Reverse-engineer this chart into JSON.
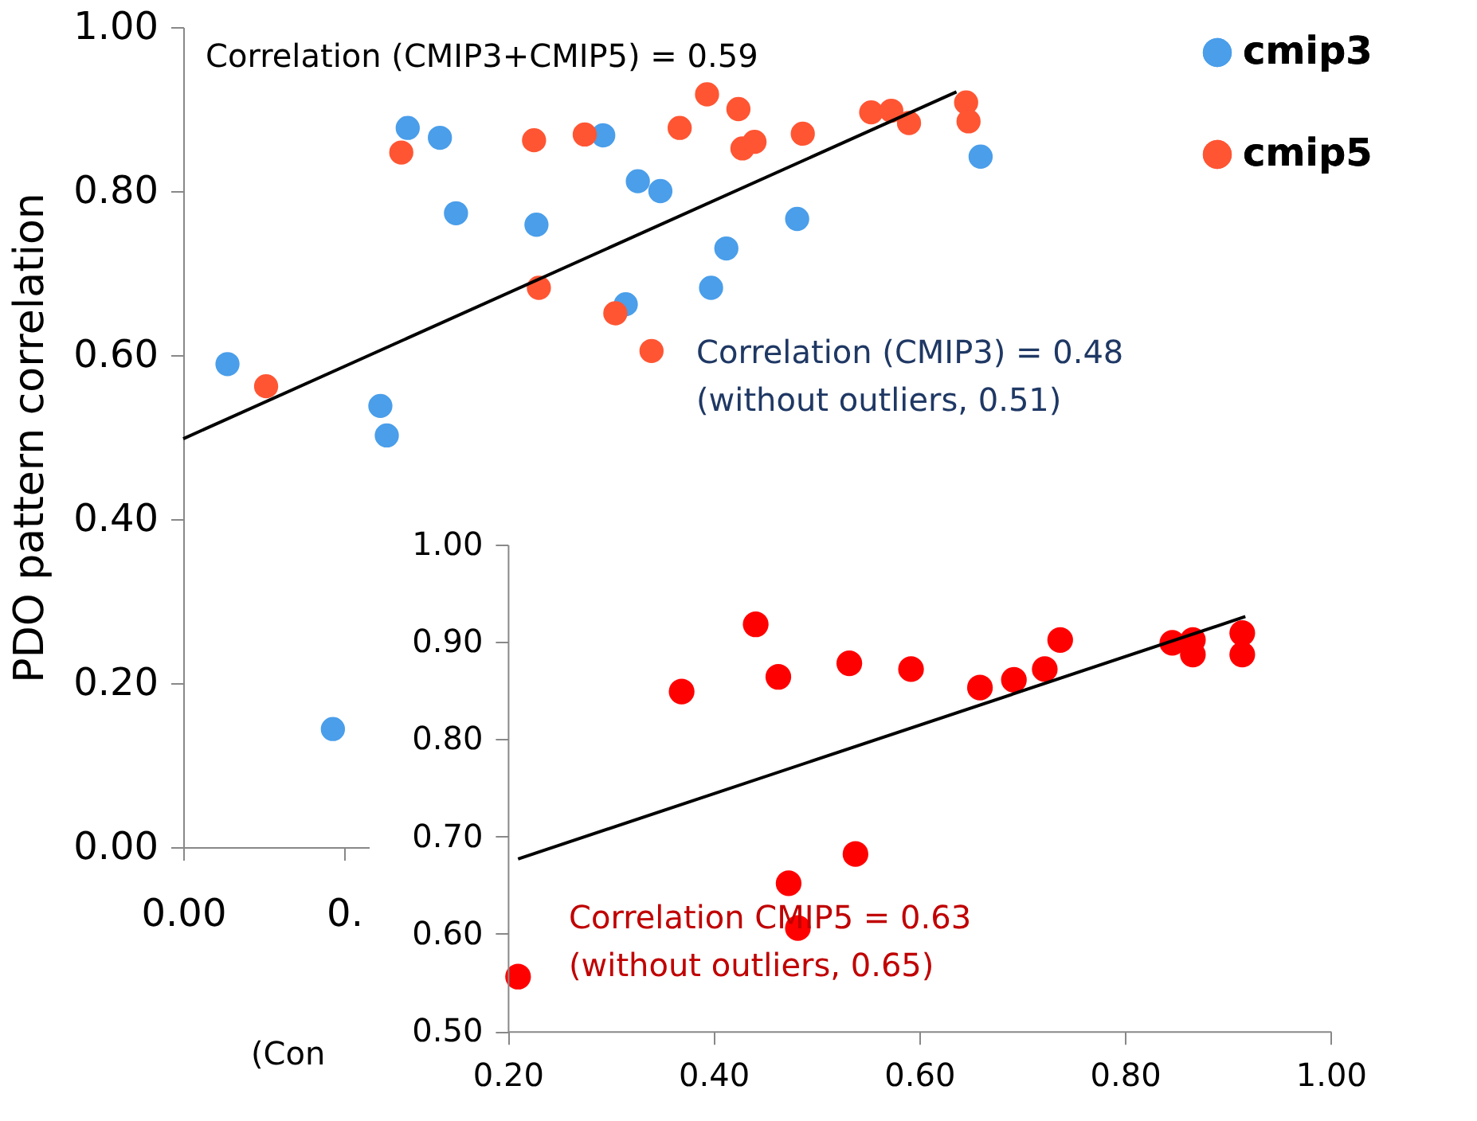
{
  "chart_data": [
    {
      "type": "scatter",
      "xlabel": "(Con",
      "ylabel": "PDO pattern correlation",
      "xlim": [
        0,
        1
      ],
      "xticks": [
        {
          "value": 0,
          "label": "0.00"
        },
        {
          "value": 0.2,
          "label": "0."
        }
      ],
      "ylim": [
        0,
        1
      ],
      "yticks": [
        {
          "value": 0,
          "label": "0.00"
        },
        {
          "value": 0.2,
          "label": "0.20"
        },
        {
          "value": 0.4,
          "label": "0.40"
        },
        {
          "value": 0.6,
          "label": "0.60"
        },
        {
          "value": 0.8,
          "label": "0.80"
        },
        {
          "value": 1,
          "label": "1.00"
        }
      ],
      "legend": "top right",
      "annotations": [
        "Correlation (CMIP3+CMIP5) = 0.59",
        "Correlation (CMIP3) = 0.48\n(without outliers, 0.51)"
      ],
      "series": [
        {
          "name": "cmip3",
          "color": "#4a9eea",
          "marker": "circle",
          "x": [
            0.279,
            0.319,
            0.339,
            0.439,
            0.522,
            0.565,
            0.593,
            0.675,
            0.656,
            0.55,
            0.055,
            0.245,
            0.253,
            0.991,
            0.763,
            0.186
          ],
          "values": [
            0.877,
            0.865,
            0.773,
            0.759,
            0.868,
            0.812,
            0.8,
            0.73,
            0.682,
            0.662,
            0.589,
            0.538,
            0.502,
            0.842,
            0.766,
            0.144
          ]
        },
        {
          "name": "cmip5",
          "color": "#ff5533",
          "marker": "circle",
          "x": [
            0.271,
            0.436,
            0.499,
            0.617,
            0.651,
            0.69,
            0.695,
            0.71,
            0.77,
            0.855,
            0.88,
            0.902,
            0.973,
            0.976,
            0.442,
            0.537,
            0.582,
            0.103
          ],
          "values": [
            0.847,
            0.862,
            0.869,
            0.877,
            0.918,
            0.9,
            0.852,
            0.86,
            0.87,
            0.896,
            0.898,
            0.883,
            0.908,
            0.885,
            0.682,
            0.651,
            0.605,
            0.562
          ]
        },
        {
          "type": "line",
          "color": "#000000",
          "x": [
            0,
            0.961
          ],
          "values": [
            0.498,
            0.921
          ]
        }
      ]
    },
    {
      "type": "scatter",
      "xlim": [
        0.2,
        1
      ],
      "xticks": [
        {
          "value": 0.2,
          "label": "0.20"
        },
        {
          "value": 0.4,
          "label": "0.40"
        },
        {
          "value": 0.6,
          "label": "0.60"
        },
        {
          "value": 0.8,
          "label": "0.80"
        },
        {
          "value": 1,
          "label": "1.00"
        }
      ],
      "ylim": [
        0.5,
        1
      ],
      "yticks": [
        {
          "value": 0.5,
          "label": "0.50"
        },
        {
          "value": 0.6,
          "label": "0.60"
        },
        {
          "value": 0.7,
          "label": "0.70"
        },
        {
          "value": 0.8,
          "label": "0.80"
        },
        {
          "value": 0.9,
          "label": "0.90"
        },
        {
          "value": 1,
          "label": "1.00"
        }
      ],
      "annotations": [
        "Correlation CMIP5 = 0.63\n(without outliers, 0.65)"
      ],
      "series": [
        {
          "color": "#ff0000",
          "marker": "circle",
          "x": [
            0.21,
            0.369,
            0.441,
            0.463,
            0.532,
            0.592,
            0.659,
            0.692,
            0.722,
            0.737,
            0.846,
            0.866,
            0.866,
            0.914,
            0.914,
            0.473,
            0.482,
            0.538
          ],
          "values": [
            0.556,
            0.849,
            0.918,
            0.864,
            0.878,
            0.872,
            0.853,
            0.861,
            0.872,
            0.902,
            0.899,
            0.902,
            0.887,
            0.909,
            0.887,
            0.652,
            0.606,
            0.682
          ]
        },
        {
          "type": "line",
          "color": "#000000",
          "x": [
            0.21,
            0.917
          ],
          "values": [
            0.677,
            0.926
          ]
        }
      ]
    }
  ]
}
